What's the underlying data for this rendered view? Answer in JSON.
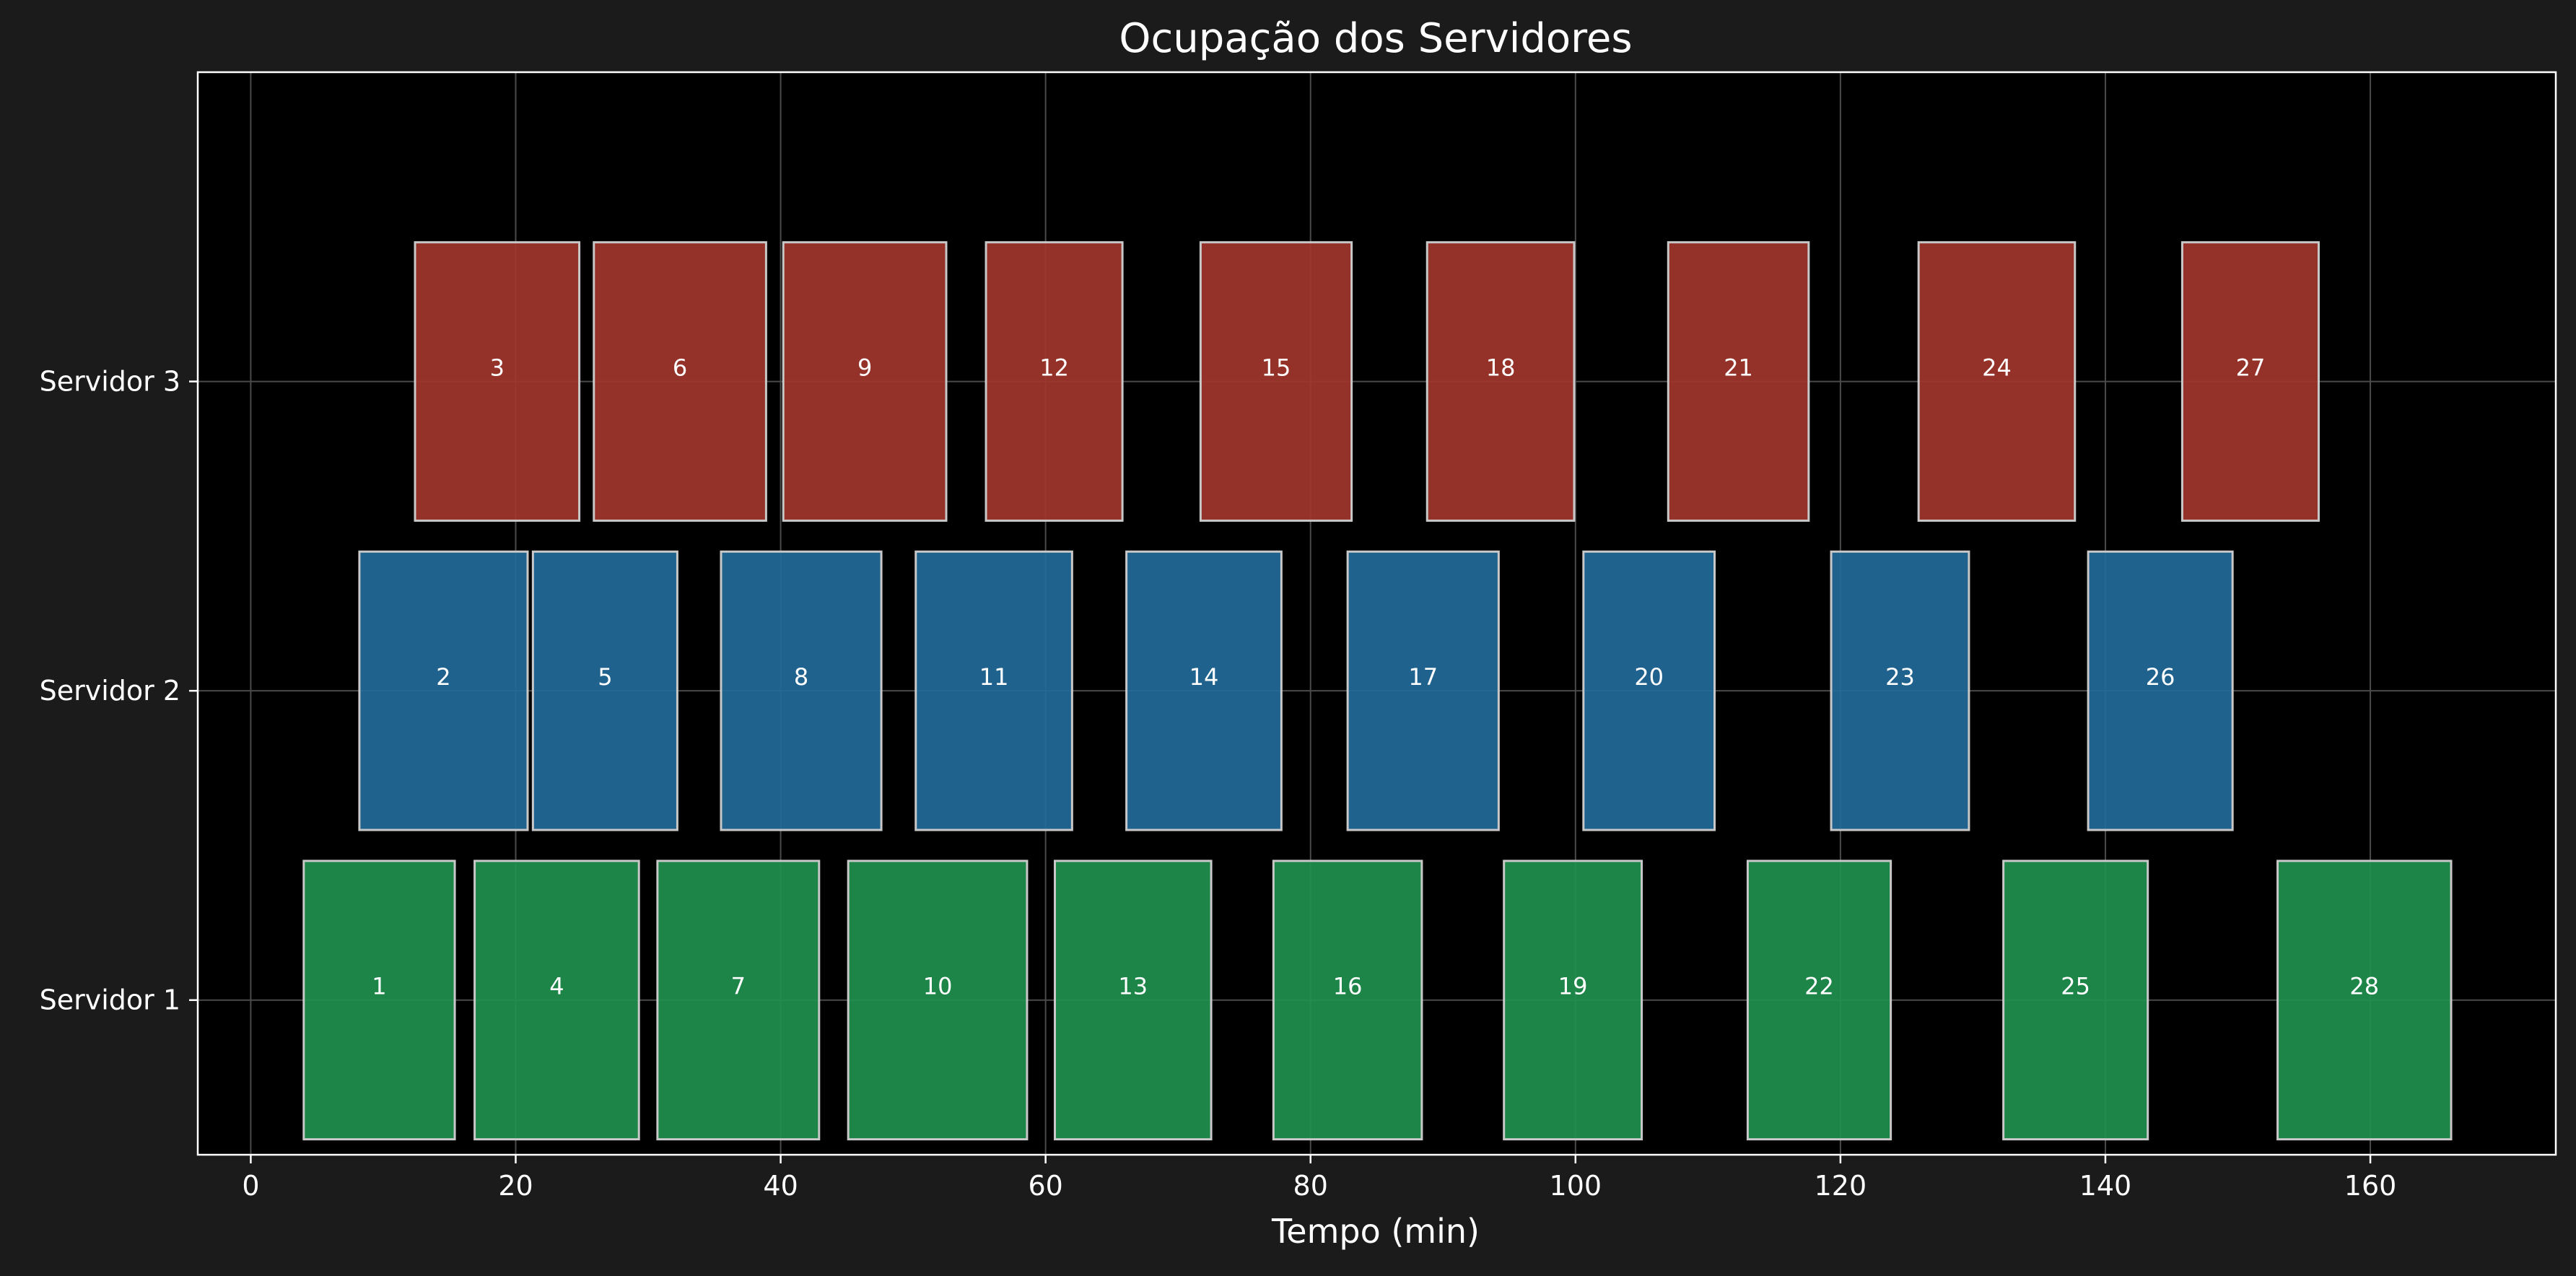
{
  "chart_data": {
    "type": "gantt",
    "title": "Ocupação dos Servidores",
    "xlabel": "Tempo (min)",
    "ylabel": "",
    "xlim": [
      -4,
      174
    ],
    "xticks": [
      0,
      20,
      40,
      60,
      80,
      100,
      120,
      140,
      160
    ],
    "categories": [
      "Servidor 1",
      "Servidor 2",
      "Servidor 3"
    ],
    "grid": true,
    "colors": {
      "Servidor 1": "#21904f",
      "Servidor 2": "#236a9a",
      "Servidor 3": "#a1352b",
      "background": "#1b1b1b",
      "plot_background": "#000000",
      "bar_edge": "#c8c8c8",
      "text": "#ffffff",
      "grid": "#4a4a4a"
    },
    "tasks": [
      {
        "id": "1",
        "server": "Servidor 1",
        "start": 4.0,
        "end": 15.4
      },
      {
        "id": "4",
        "server": "Servidor 1",
        "start": 16.9,
        "end": 29.3
      },
      {
        "id": "7",
        "server": "Servidor 1",
        "start": 30.7,
        "end": 42.9
      },
      {
        "id": "10",
        "server": "Servidor 1",
        "start": 45.1,
        "end": 58.6
      },
      {
        "id": "13",
        "server": "Servidor 1",
        "start": 60.7,
        "end": 72.5
      },
      {
        "id": "16",
        "server": "Servidor 1",
        "start": 77.2,
        "end": 88.4
      },
      {
        "id": "19",
        "server": "Servidor 1",
        "start": 94.6,
        "end": 105.0
      },
      {
        "id": "22",
        "server": "Servidor 1",
        "start": 113.0,
        "end": 123.8
      },
      {
        "id": "25",
        "server": "Servidor 1",
        "start": 132.3,
        "end": 143.2
      },
      {
        "id": "28",
        "server": "Servidor 1",
        "start": 153.0,
        "end": 166.1
      },
      {
        "id": "2",
        "server": "Servidor 2",
        "start": 8.2,
        "end": 20.9
      },
      {
        "id": "5",
        "server": "Servidor 2",
        "start": 21.3,
        "end": 32.2
      },
      {
        "id": "8",
        "server": "Servidor 2",
        "start": 35.5,
        "end": 47.6
      },
      {
        "id": "11",
        "server": "Servidor 2",
        "start": 50.2,
        "end": 62.0
      },
      {
        "id": "14",
        "server": "Servidor 2",
        "start": 66.1,
        "end": 77.8
      },
      {
        "id": "17",
        "server": "Servidor 2",
        "start": 82.8,
        "end": 94.2
      },
      {
        "id": "20",
        "server": "Servidor 2",
        "start": 100.6,
        "end": 110.5
      },
      {
        "id": "23",
        "server": "Servidor 2",
        "start": 119.3,
        "end": 129.7
      },
      {
        "id": "26",
        "server": "Servidor 2",
        "start": 138.7,
        "end": 149.6
      },
      {
        "id": "3",
        "server": "Servidor 3",
        "start": 12.4,
        "end": 24.8
      },
      {
        "id": "6",
        "server": "Servidor 3",
        "start": 25.9,
        "end": 38.9
      },
      {
        "id": "9",
        "server": "Servidor 3",
        "start": 40.2,
        "end": 52.5
      },
      {
        "id": "12",
        "server": "Servidor 3",
        "start": 55.5,
        "end": 65.8
      },
      {
        "id": "15",
        "server": "Servidor 3",
        "start": 71.7,
        "end": 83.1
      },
      {
        "id": "18",
        "server": "Servidor 3",
        "start": 88.8,
        "end": 99.9
      },
      {
        "id": "21",
        "server": "Servidor 3",
        "start": 107.0,
        "end": 117.6
      },
      {
        "id": "24",
        "server": "Servidor 3",
        "start": 125.9,
        "end": 137.7
      },
      {
        "id": "27",
        "server": "Servidor 3",
        "start": 145.8,
        "end": 156.1
      }
    ]
  }
}
